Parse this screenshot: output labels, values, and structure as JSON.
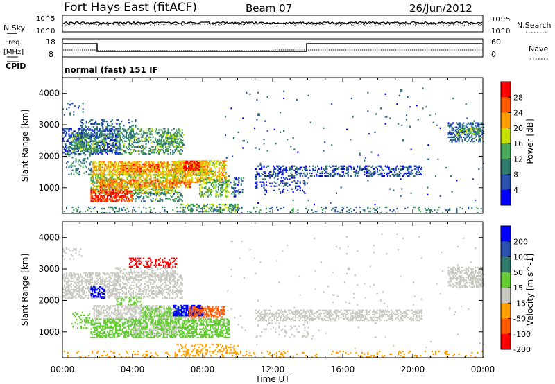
{
  "header": {
    "title": "Fort Hays East (fitACF)",
    "beam": "Beam 07",
    "date": "26/Jun/2012"
  },
  "noise_panel": {
    "left_label": "N.Sky",
    "right_label": "N.Search",
    "left_ticks": [
      "10^5",
      "10^0"
    ],
    "right_ticks": [
      "10^5",
      "10^0"
    ]
  },
  "freq_panel": {
    "left_label_1": "Freq.",
    "left_label_2": "[MHz]",
    "right_label": "Nave",
    "left_ticks": [
      "18",
      "8"
    ],
    "right_ticks": [
      "60",
      "0"
    ],
    "cpid_label": "CPID",
    "cpid_text": "normal (fast) 151 IF"
  },
  "colors": {
    "power": [
      "#0000ff",
      "#2850aa",
      "#307a6c",
      "#4aa85a",
      "#c8e000",
      "#ffa000",
      "#ff5a00",
      "#ff0000"
    ],
    "velocity": [
      "#0000ff",
      "#2850aa",
      "#307a6c",
      "#66cc33",
      "#c8c8c0",
      "#ffa000",
      "#ff5a00",
      "#ff0000"
    ]
  },
  "chart_data": [
    {
      "type": "heatmap",
      "name": "power",
      "ylabel": "Slant Range [km]",
      "yticks": [
        1000,
        2000,
        3000,
        4000
      ],
      "ylim": [
        180,
        4500
      ],
      "xlim": [
        0,
        24
      ],
      "colorbar_label": "Power [dB]",
      "colorbar_ticks": [
        4,
        8,
        12,
        16,
        20,
        24,
        28
      ],
      "colorbar_range": [
        0,
        32
      ],
      "regions": [
        {
          "t0": 0.0,
          "t1": 3.3,
          "r0": 2050,
          "r1": 2900,
          "v": 6,
          "d": 0.45
        },
        {
          "t0": 0.5,
          "t1": 2.5,
          "r0": 2150,
          "r1": 2650,
          "v": 13,
          "d": 0.45
        },
        {
          "t0": 1.0,
          "t1": 4.2,
          "r0": 2550,
          "r1": 3150,
          "v": 8,
          "d": 0.25
        },
        {
          "t0": 3.0,
          "t1": 6.8,
          "r0": 2050,
          "r1": 2900,
          "v": 12,
          "d": 0.35
        },
        {
          "t0": 5.5,
          "t1": 6.9,
          "r0": 2300,
          "r1": 2700,
          "v": 14,
          "d": 0.35
        },
        {
          "t0": 0.2,
          "t1": 1.6,
          "r0": 1400,
          "r1": 2300,
          "v": 10,
          "d": 0.2
        },
        {
          "t0": 1.7,
          "t1": 8.3,
          "r0": 1400,
          "r1": 1850,
          "v": 21,
          "d": 0.6
        },
        {
          "t0": 3.3,
          "t1": 5.5,
          "r0": 1500,
          "r1": 1750,
          "v": 26,
          "d": 0.45
        },
        {
          "t0": 6.3,
          "t1": 9.3,
          "r0": 1150,
          "r1": 1850,
          "v": 20,
          "d": 0.55
        },
        {
          "t0": 6.9,
          "t1": 7.8,
          "r0": 1550,
          "r1": 1850,
          "v": 30,
          "d": 0.7
        },
        {
          "t0": 1.6,
          "t1": 6.5,
          "r0": 800,
          "r1": 1400,
          "v": 17,
          "d": 0.55
        },
        {
          "t0": 2.0,
          "t1": 7.3,
          "r0": 1000,
          "r1": 1250,
          "v": 24,
          "d": 0.5
        },
        {
          "t0": 1.6,
          "t1": 4.0,
          "r0": 550,
          "r1": 950,
          "v": 28,
          "d": 0.6
        },
        {
          "t0": 4.0,
          "t1": 6.8,
          "r0": 550,
          "r1": 850,
          "v": 12,
          "d": 0.3
        },
        {
          "t0": 7.8,
          "t1": 9.5,
          "r0": 700,
          "r1": 1250,
          "v": 15,
          "d": 0.45
        },
        {
          "t0": 9.5,
          "t1": 10.3,
          "r0": 700,
          "r1": 1300,
          "v": 8,
          "d": 0.2
        },
        {
          "t0": 11.0,
          "t1": 20.5,
          "r0": 1350,
          "r1": 1700,
          "v": 6,
          "d": 0.35
        },
        {
          "t0": 11.0,
          "t1": 14.0,
          "r0": 800,
          "r1": 1350,
          "v": 5,
          "d": 0.15
        },
        {
          "t0": 22.0,
          "t1": 24.0,
          "r0": 2450,
          "r1": 3050,
          "v": 8,
          "d": 0.45
        },
        {
          "t0": 22.5,
          "t1": 23.8,
          "r0": 2650,
          "r1": 2900,
          "v": 14,
          "d": 0.4
        },
        {
          "t0": 6.5,
          "t1": 10.0,
          "r0": 220,
          "r1": 450,
          "v": 14,
          "d": 0.35
        },
        {
          "t0": 0.0,
          "t1": 24.0,
          "r0": 180,
          "r1": 400,
          "v": 10,
          "d": 0.12
        },
        {
          "t0": 0.0,
          "t1": 1.2,
          "r0": 3300,
          "r1": 3700,
          "v": 6,
          "d": 0.15
        },
        {
          "t0": 9.0,
          "t1": 24.0,
          "r0": 400,
          "r1": 4200,
          "v": 7,
          "d": 0.008
        }
      ]
    },
    {
      "type": "heatmap",
      "name": "velocity",
      "ylabel": "Slant Range [km]",
      "yticks": [
        1000,
        2000,
        3000,
        4000
      ],
      "ylim": [
        180,
        4500
      ],
      "xlim": [
        0,
        24
      ],
      "xlabel": "Time UT",
      "xticks": [
        "00:00",
        "04:00",
        "08:00",
        "12:00",
        "16:00",
        "20:00",
        "00:00"
      ],
      "colorbar_label": "Velocity [m s^-1]",
      "colorbar_ticks": [
        200,
        100,
        50,
        15,
        -15,
        -50,
        -100,
        -200
      ],
      "regions": [
        {
          "t0": 0.0,
          "t1": 3.3,
          "r0": 2050,
          "r1": 2900,
          "v": 0,
          "d": 0.45
        },
        {
          "t0": 3.0,
          "t1": 6.8,
          "r0": 2050,
          "r1": 2900,
          "v": 0,
          "d": 0.4
        },
        {
          "t0": 1.6,
          "t1": 2.4,
          "r0": 2050,
          "r1": 2450,
          "v": 250,
          "d": 0.55
        },
        {
          "t0": 3.0,
          "t1": 4.5,
          "r0": 1850,
          "r1": 2100,
          "v": 30,
          "d": 0.3
        },
        {
          "t0": 3.8,
          "t1": 6.5,
          "r0": 3050,
          "r1": 3350,
          "v": -250,
          "d": 0.35
        },
        {
          "t0": 3.0,
          "t1": 6.5,
          "r0": 2650,
          "r1": 3050,
          "v": 0,
          "d": 0.2
        },
        {
          "t0": 1.7,
          "t1": 8.3,
          "r0": 1400,
          "r1": 1850,
          "v": 0,
          "d": 0.5
        },
        {
          "t0": 4.5,
          "t1": 7.0,
          "r0": 1450,
          "r1": 1800,
          "v": 30,
          "d": 0.4
        },
        {
          "t0": 6.3,
          "t1": 8.0,
          "r0": 1500,
          "r1": 1850,
          "v": 250,
          "d": 0.65
        },
        {
          "t0": 7.2,
          "t1": 9.2,
          "r0": 1450,
          "r1": 1800,
          "v": -60,
          "d": 0.55
        },
        {
          "t0": 1.6,
          "t1": 9.5,
          "r0": 800,
          "r1": 1400,
          "v": 30,
          "d": 0.55
        },
        {
          "t0": 4.0,
          "t1": 6.5,
          "r0": 850,
          "r1": 1250,
          "v": 0,
          "d": 0.25
        },
        {
          "t0": 0.5,
          "t1": 1.5,
          "r0": 1100,
          "r1": 1600,
          "v": 20,
          "d": 0.15
        },
        {
          "t0": 11.0,
          "t1": 20.5,
          "r0": 1350,
          "r1": 1700,
          "v": 0,
          "d": 0.4
        },
        {
          "t0": 11.0,
          "t1": 14.0,
          "r0": 800,
          "r1": 1350,
          "v": 0,
          "d": 0.12
        },
        {
          "t0": 22.0,
          "t1": 24.0,
          "r0": 2400,
          "r1": 3050,
          "v": 0,
          "d": 0.5
        },
        {
          "t0": 0.0,
          "t1": 24.0,
          "r0": 180,
          "r1": 400,
          "v": -30,
          "d": 0.12
        },
        {
          "t0": 6.5,
          "t1": 10.0,
          "r0": 220,
          "r1": 600,
          "v": -20,
          "d": 0.2
        },
        {
          "t0": 0.0,
          "t1": 1.2,
          "r0": 3300,
          "r1": 3700,
          "v": 0,
          "d": 0.15
        },
        {
          "t0": 9.0,
          "t1": 24.0,
          "r0": 400,
          "r1": 4200,
          "v": 0,
          "d": 0.008
        }
      ]
    }
  ]
}
